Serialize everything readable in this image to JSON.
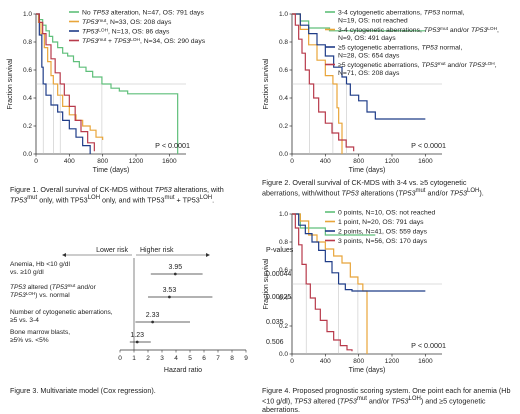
{
  "chart_data": [
    {
      "type": "line",
      "subtype": "kaplan-meier",
      "xlabel": "Time (days)",
      "ylabel": "Fraction survival",
      "xlim": [
        0,
        1800
      ],
      "ylim": [
        0,
        1
      ],
      "xticks": [
        "0",
        "400",
        "800",
        "1200",
        "1600"
      ],
      "yticks": [
        "0.0",
        "0.2",
        "0.4",
        "0.6",
        "0.8",
        "1.0"
      ],
      "pvalue": "P < 0.0001",
      "legend_placement": "top-right",
      "series": [
        {
          "name": "No TP53 alteration, N=47, OS: 791 days",
          "color": "#5fbf7a",
          "x": [
            0,
            40,
            80,
            120,
            160,
            200,
            260,
            320,
            380,
            450,
            520,
            600,
            680,
            791,
            900,
            1000,
            1100,
            1700
          ],
          "y": [
            1.0,
            0.96,
            0.92,
            0.88,
            0.84,
            0.8,
            0.76,
            0.72,
            0.7,
            0.66,
            0.62,
            0.59,
            0.55,
            0.5,
            0.47,
            0.45,
            0.43,
            0.0
          ]
        },
        {
          "name": "TP53mut, N=33, OS: 208 days",
          "color": "#e8a53a",
          "x": [
            0,
            30,
            60,
            100,
            140,
            180,
            208,
            260,
            320,
            400,
            480,
            560,
            650,
            720,
            800
          ],
          "y": [
            1.0,
            0.94,
            0.86,
            0.76,
            0.66,
            0.56,
            0.5,
            0.42,
            0.34,
            0.28,
            0.24,
            0.2,
            0.17,
            0.12,
            0.1
          ]
        },
        {
          "name": "TP53LOH, N=13, OS: 86 days",
          "color": "#1f3c88",
          "x": [
            0,
            40,
            70,
            86,
            120,
            180,
            260,
            320,
            400,
            480,
            560,
            650
          ],
          "y": [
            1.0,
            0.85,
            0.62,
            0.5,
            0.42,
            0.35,
            0.3,
            0.24,
            0.18,
            0.12,
            0.06,
            0.0
          ]
        },
        {
          "name": "TP53mut + TP53LOH, N=34, OS: 290 days",
          "color": "#b83a4b",
          "x": [
            0,
            40,
            80,
            120,
            180,
            230,
            290,
            340,
            400,
            470,
            540,
            620,
            700
          ],
          "y": [
            1.0,
            0.94,
            0.86,
            0.78,
            0.68,
            0.58,
            0.5,
            0.42,
            0.34,
            0.24,
            0.16,
            0.08,
            0.02
          ]
        }
      ],
      "caption_parts": [
        "Figure 1.  Overall survival of CK-MDS without ",
        "TP53",
        " alterations, with",
        "TP53",
        "mut",
        " only, with TP53",
        "LOH",
        " only, and with TP53",
        "mut",
        " + TP53",
        "LOH",
        "."
      ]
    },
    {
      "type": "line",
      "subtype": "kaplan-meier",
      "xlabel": "Time (days)",
      "ylabel": "Fraction survival",
      "xlim": [
        0,
        1800
      ],
      "ylim": [
        0,
        1
      ],
      "xticks": [
        "0",
        "400",
        "800",
        "1200",
        "1600"
      ],
      "yticks": [
        "0.0",
        "0.2",
        "0.4",
        "0.6",
        "0.8",
        "1.0"
      ],
      "pvalue": "P < 0.0001",
      "legend_placement": "top-right",
      "series": [
        {
          "name": "3-4 cytogenetic aberrations, TP53 normal, N=19, OS: not reached",
          "color": "#5fbf7a",
          "x": [
            0,
            100,
            200,
            300,
            450,
            600,
            800,
            1000,
            1200,
            1600
          ],
          "y": [
            1.0,
            0.95,
            0.9,
            0.9,
            0.88,
            0.88,
            0.88,
            0.88,
            0.88,
            0.88
          ]
        },
        {
          "name": "3-4 cytogenetic aberrations, TP53mut and/or TP53LOH, N=9, OS: 491 days",
          "color": "#e8a53a",
          "x": [
            0,
            100,
            200,
            300,
            400,
            491,
            540,
            560,
            600
          ],
          "y": [
            1.0,
            0.89,
            0.78,
            0.67,
            0.56,
            0.5,
            0.33,
            0.22,
            0.0
          ]
        },
        {
          "name": "≥5 cytogenetic aberrations, TP53 normal, N=28, OS: 654 days",
          "color": "#1f3c88",
          "x": [
            0,
            100,
            200,
            300,
            400,
            500,
            600,
            654,
            700,
            800,
            900,
            1000,
            1600
          ],
          "y": [
            1.0,
            0.92,
            0.86,
            0.78,
            0.7,
            0.62,
            0.55,
            0.5,
            0.42,
            0.38,
            0.3,
            0.25,
            0.25
          ]
        },
        {
          "name": "≥5 cytogenetic aberrations, TP53mut and/or TP53LOH, N=71, OS: 208 days",
          "color": "#b83a4b",
          "x": [
            0,
            40,
            80,
            120,
            160,
            208,
            260,
            320,
            400,
            480,
            560,
            650,
            740
          ],
          "y": [
            1.0,
            0.92,
            0.82,
            0.72,
            0.6,
            0.5,
            0.4,
            0.3,
            0.22,
            0.15,
            0.1,
            0.05,
            0.02
          ]
        }
      ],
      "caption_parts": [
        "Figure 2.  Overall survival of CK-MDS with 3-4 vs. ≥5 cytogenetic",
        "aberrations, with/without ",
        "TP53",
        " alterations (",
        "TP53",
        "mut",
        " and/or ",
        "TP53",
        "LOH",
        ")."
      ]
    },
    {
      "type": "forest",
      "title": "",
      "xlabel": "Hazard ratio",
      "xlim": [
        0,
        9
      ],
      "xticks": [
        "0",
        "1",
        "2",
        "3",
        "4",
        "5",
        "6",
        "7",
        "8",
        "9"
      ],
      "direction_labels": [
        "Lower risk",
        "Higher risk"
      ],
      "pvalue_header": "P-values",
      "rows": [
        {
          "label_lines": [
            "Anemia, Hb <10 g/dl",
            "vs. ≥10 g/dl"
          ],
          "hr": 3.95,
          "ci": [
            2.2,
            5.9
          ],
          "p": "0.00044"
        },
        {
          "label_lines": [
            "TP53 altered (TP53mut and/or",
            "TP53LOH) vs. normal"
          ],
          "hr": 3.53,
          "ci": [
            2.0,
            6.6
          ],
          "p": "0.00025"
        },
        {
          "label_lines": [
            "Number of cytogenetic aberrations,",
            "≥5 vs. 3-4"
          ],
          "hr": 2.33,
          "ci": [
            1.1,
            5.0
          ],
          "p": "0.035"
        },
        {
          "label_lines": [
            "Bone marrow blasts,",
            "≥5% vs. <5%"
          ],
          "hr": 1.23,
          "ci": [
            0.7,
            2.2
          ],
          "p": "0.506"
        }
      ],
      "caption": "Figure 3.  Multivariate model (Cox regression)."
    },
    {
      "type": "line",
      "subtype": "kaplan-meier",
      "xlabel": "Time (days)",
      "ylabel": "Fraction survival",
      "xlim": [
        0,
        1800
      ],
      "ylim": [
        0,
        1
      ],
      "xticks": [
        "0",
        "400",
        "800",
        "1200",
        "1600"
      ],
      "yticks": [
        "0.0",
        "0.2",
        "0.4",
        "0.6",
        "0.8",
        "1.0"
      ],
      "pvalue": "P < 0.0001",
      "legend_placement": "top-right",
      "series": [
        {
          "name": "0 points, N=10, OS: not reached",
          "color": "#5fbf7a",
          "x": [
            0,
            100,
            300,
            400,
            600,
            800,
            1000
          ],
          "y": [
            1.0,
            0.9,
            0.9,
            0.85,
            0.85,
            0.85,
            0.85
          ]
        },
        {
          "name": "1 point, N=20, OS: 791 days",
          "color": "#e8a53a",
          "x": [
            0,
            100,
            200,
            300,
            400,
            500,
            600,
            700,
            791,
            850,
            900
          ],
          "y": [
            1.0,
            0.95,
            0.85,
            0.8,
            0.75,
            0.7,
            0.65,
            0.55,
            0.5,
            0.45,
            0.0
          ]
        },
        {
          "name": "2 points, N=41, OS: 559 days",
          "color": "#1f3c88",
          "x": [
            0,
            80,
            160,
            240,
            320,
            400,
            480,
            559,
            640,
            720,
            800,
            900,
            1100,
            1600
          ],
          "y": [
            1.0,
            0.92,
            0.86,
            0.8,
            0.74,
            0.66,
            0.58,
            0.5,
            0.46,
            0.45,
            0.45,
            0.45,
            0.45,
            0.45
          ]
        },
        {
          "name": "3 points, N=56, OS: 170 days",
          "color": "#b83a4b",
          "x": [
            0,
            40,
            80,
            120,
            170,
            220,
            280,
            340,
            420,
            500,
            580,
            660,
            720
          ],
          "y": [
            1.0,
            0.9,
            0.78,
            0.64,
            0.5,
            0.4,
            0.32,
            0.24,
            0.16,
            0.1,
            0.06,
            0.03,
            0.02
          ]
        }
      ],
      "caption_parts": [
        "Figure 4.  Proposed prognostic scoring system. One point each for anemia (Hb",
        "<10 g/dl), ",
        "TP53",
        " altered (",
        "TP53",
        "mut",
        " and/or ",
        "TP53",
        "LOH",
        ") and ≥5 cytogenetic aberrations."
      ]
    }
  ]
}
